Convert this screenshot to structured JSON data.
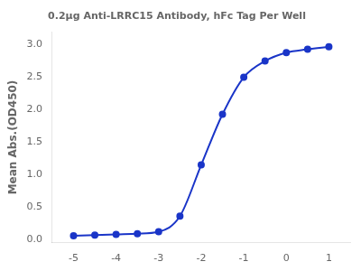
{
  "chart_data": {
    "type": "line",
    "title": "0.2μg Anti-LRRC15 Antibody, hFc Tag Per Well",
    "ylabel": "Mean Abs.(OD450)",
    "x": [
      -5,
      -4.5,
      -4,
      -3.5,
      -3,
      -2.5,
      -2,
      -1.5,
      -1,
      -0.5,
      0,
      0.5,
      1
    ],
    "values": [
      0.06,
      0.07,
      0.08,
      0.09,
      0.12,
      0.36,
      1.15,
      1.93,
      2.5,
      2.75,
      2.88,
      2.93,
      2.97
    ],
    "color": "#1a35c8",
    "marker": "o",
    "xlim": [
      -5.5,
      1.5
    ],
    "ylim": [
      -0.05,
      3.2
    ],
    "xticks": [
      -5,
      -4,
      -3,
      -2,
      -1,
      0,
      1
    ],
    "yticks": [
      {
        "value": 0.0,
        "label": "0.0"
      },
      0.5,
      {
        "value": 1.0,
        "label": "1.0"
      },
      1.5,
      {
        "value": 2.0,
        "label": "2.0"
      },
      2.5,
      {
        "value": 3.0,
        "label": "3.0"
      }
    ],
    "grid": false
  }
}
